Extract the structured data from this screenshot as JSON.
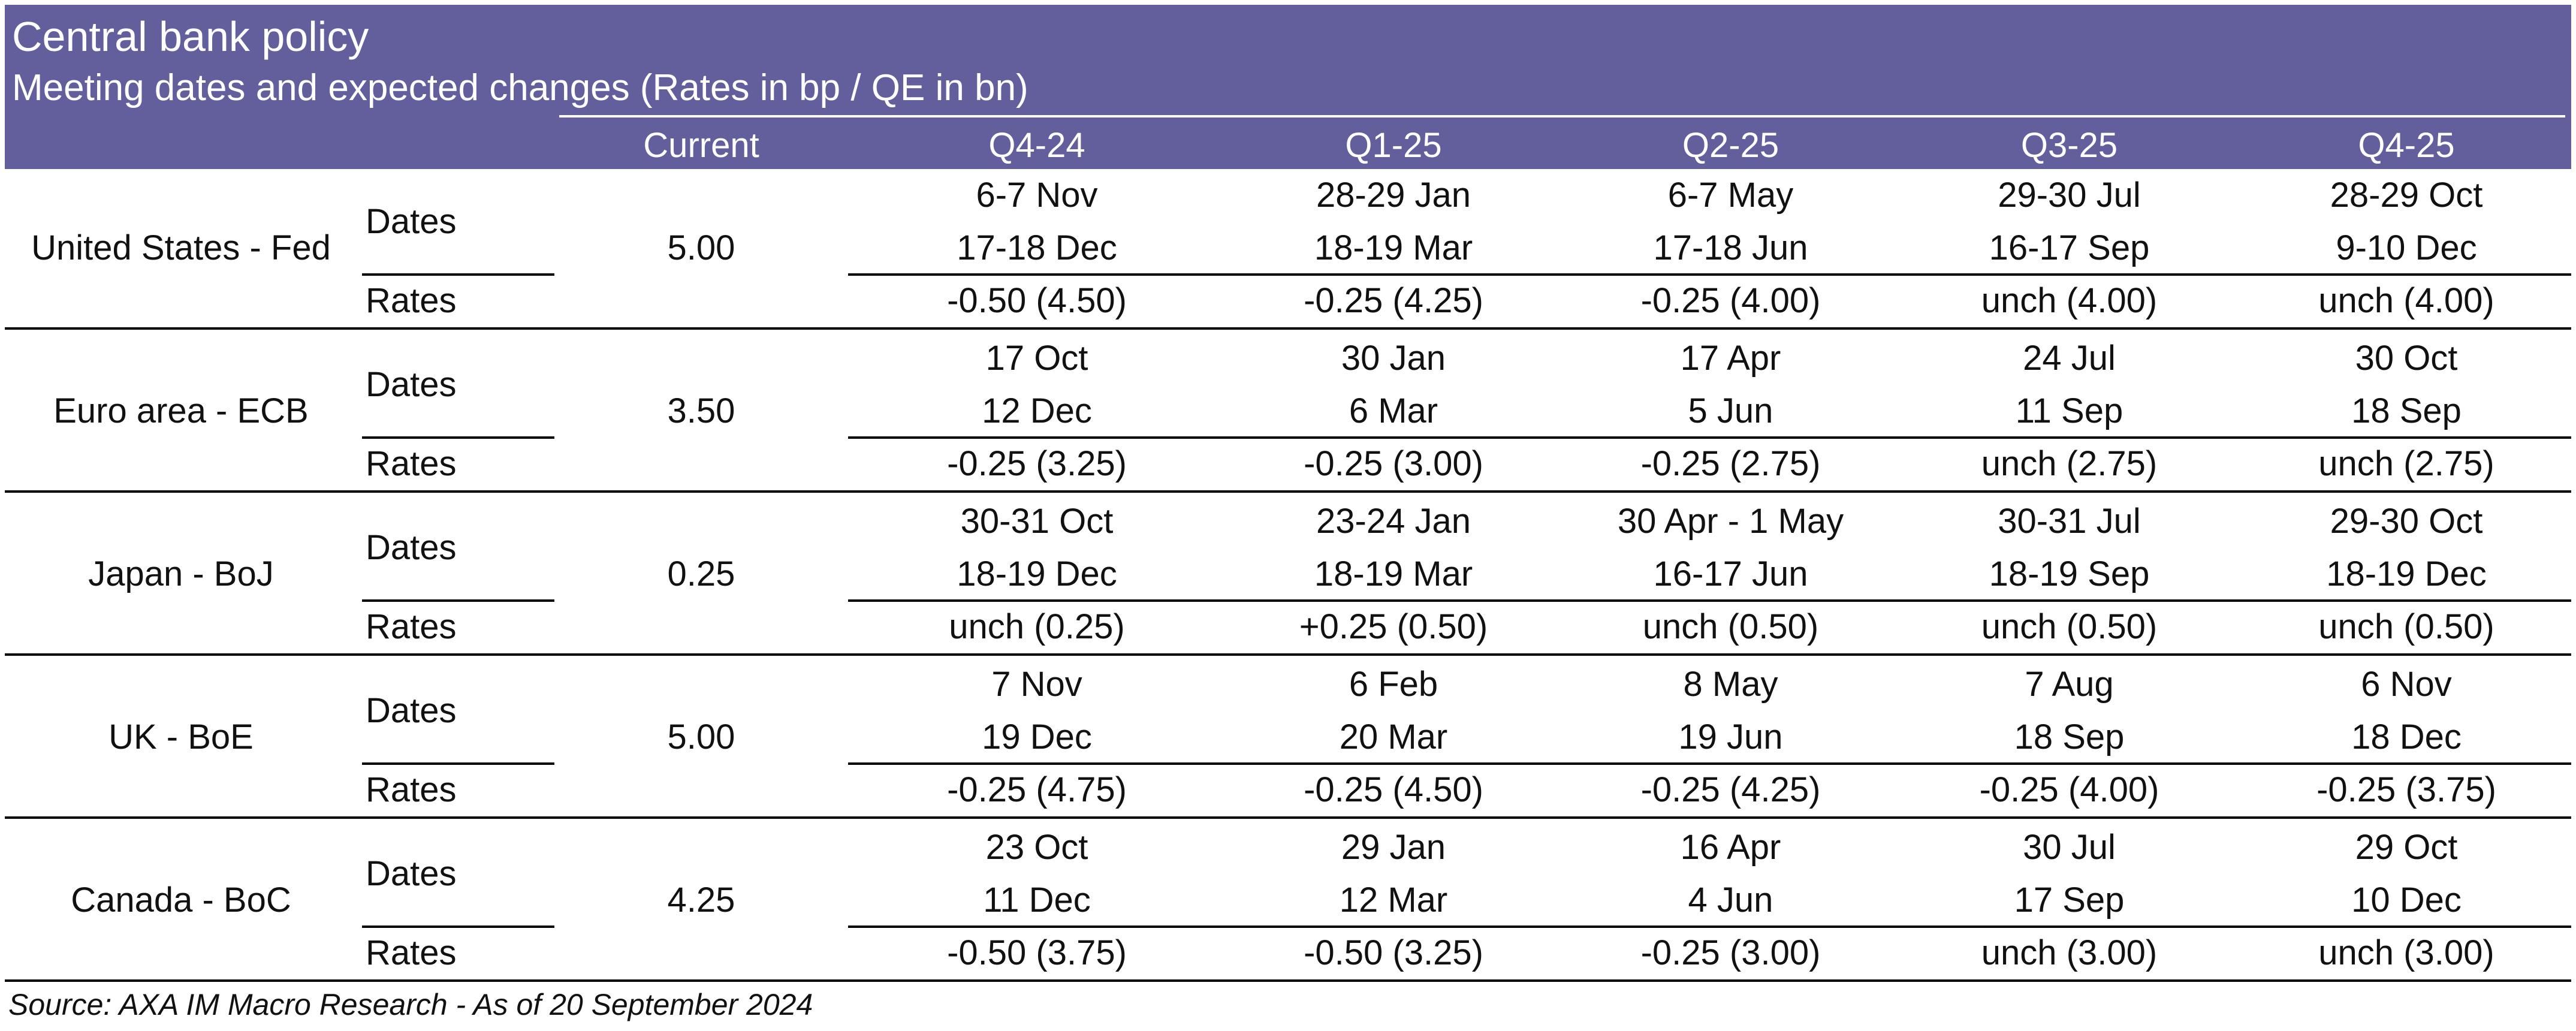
{
  "header": {
    "title": "Central bank policy",
    "subtitle": "Meeting dates and expected changes (Rates in bp / QE in bn)",
    "columns": [
      "Current",
      "Q4-24",
      "Q1-25",
      "Q2-25",
      "Q3-25",
      "Q4-25"
    ],
    "color": "#635f9c"
  },
  "banks": [
    {
      "name": "United States - Fed",
      "dates_label": "Dates",
      "rates_label": "Rates",
      "current": "5.00",
      "quarters": [
        {
          "d1": "6-7 Nov",
          "d2": "17-18 Dec",
          "rate": "-0.50 (4.50)"
        },
        {
          "d1": "28-29 Jan",
          "d2": "18-19 Mar",
          "rate": "-0.25 (4.25)"
        },
        {
          "d1": "6-7 May",
          "d2": "17-18 Jun",
          "rate": "-0.25 (4.00)"
        },
        {
          "d1": "29-30 Jul",
          "d2": "16-17 Sep",
          "rate": "unch (4.00)"
        },
        {
          "d1": "28-29 Oct",
          "d2": "9-10 Dec",
          "rate": "unch (4.00)"
        }
      ]
    },
    {
      "name": "Euro area - ECB",
      "dates_label": "Dates",
      "rates_label": "Rates",
      "current": "3.50",
      "quarters": [
        {
          "d1": "17 Oct",
          "d2": "12 Dec",
          "rate": "-0.25 (3.25)"
        },
        {
          "d1": "30 Jan",
          "d2": "6 Mar",
          "rate": "-0.25 (3.00)"
        },
        {
          "d1": "17 Apr",
          "d2": "5 Jun",
          "rate": "-0.25 (2.75)"
        },
        {
          "d1": "24 Jul",
          "d2": "11 Sep",
          "rate": "unch (2.75)"
        },
        {
          "d1": "30 Oct",
          "d2": "18 Sep",
          "rate": "unch (2.75)"
        }
      ]
    },
    {
      "name": "Japan - BoJ",
      "dates_label": "Dates",
      "rates_label": "Rates",
      "current": "0.25",
      "quarters": [
        {
          "d1": "30-31 Oct",
          "d2": "18-19 Dec",
          "rate": "unch (0.25)"
        },
        {
          "d1": "23-24 Jan",
          "d2": "18-19 Mar",
          "rate": "+0.25 (0.50)"
        },
        {
          "d1": "30 Apr - 1 May",
          "d2": "16-17 Jun",
          "rate": "unch (0.50)"
        },
        {
          "d1": "30-31 Jul",
          "d2": "18-19 Sep",
          "rate": "unch (0.50)"
        },
        {
          "d1": "29-30 Oct",
          "d2": "18-19 Dec",
          "rate": "unch (0.50)"
        }
      ]
    },
    {
      "name": "UK - BoE",
      "dates_label": "Dates",
      "rates_label": "Rates",
      "current": "5.00",
      "quarters": [
        {
          "d1": "7 Nov",
          "d2": "19 Dec",
          "rate": "-0.25 (4.75)"
        },
        {
          "d1": "6 Feb",
          "d2": "20 Mar",
          "rate": "-0.25 (4.50)"
        },
        {
          "d1": "8 May",
          "d2": "19 Jun",
          "rate": "-0.25 (4.25)"
        },
        {
          "d1": "7 Aug",
          "d2": "18 Sep",
          "rate": "-0.25 (4.00)"
        },
        {
          "d1": "6 Nov",
          "d2": "18 Dec",
          "rate": "-0.25 (3.75)"
        }
      ]
    },
    {
      "name": "Canada - BoC",
      "dates_label": "Dates",
      "rates_label": "Rates",
      "current": "4.25",
      "quarters": [
        {
          "d1": "23 Oct",
          "d2": "11 Dec",
          "rate": "-0.50 (3.75)"
        },
        {
          "d1": "29 Jan",
          "d2": "12 Mar",
          "rate": "-0.50 (3.25)"
        },
        {
          "d1": "16 Apr",
          "d2": "4 Jun",
          "rate": "-0.25 (3.00)"
        },
        {
          "d1": "30 Jul",
          "d2": "17 Sep",
          "rate": "unch (3.00)"
        },
        {
          "d1": "29 Oct",
          "d2": "10 Dec",
          "rate": "unch (3.00)"
        }
      ]
    }
  ],
  "source": "Source: AXA IM Macro Research - As of 20 September 2024"
}
